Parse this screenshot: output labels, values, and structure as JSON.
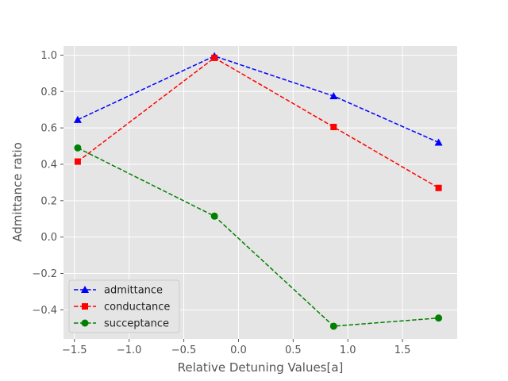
{
  "chart_data": {
    "type": "line",
    "title": "",
    "xlabel": "Relative Detuning Values[a]",
    "ylabel": "Admittance ratio",
    "xlim": [
      -1.6,
      2.0
    ],
    "ylim": [
      -0.56,
      1.05
    ],
    "xticks": [
      -1.5,
      -1.0,
      -0.5,
      0.0,
      0.5,
      1.0,
      1.5
    ],
    "xtick_labels": [
      "−1.5",
      "−1.0",
      "−0.5",
      "0.0",
      "0.5",
      "1.0",
      "1.5"
    ],
    "yticks": [
      -0.4,
      -0.2,
      0.0,
      0.2,
      0.4,
      0.6,
      0.8,
      1.0
    ],
    "ytick_labels": [
      "−0.4",
      "−0.2",
      "0.0",
      "0.2",
      "0.4",
      "0.6",
      "0.8",
      "1.0"
    ],
    "grid": true,
    "legend_position": "lower-left",
    "x": [
      -1.47,
      -0.22,
      0.87,
      1.83
    ],
    "series": [
      {
        "name": "admittance",
        "values": [
          0.645,
          0.995,
          0.775,
          0.52
        ],
        "color": "#0000ff",
        "marker": "triangle"
      },
      {
        "name": "conductance",
        "values": [
          0.415,
          0.985,
          0.605,
          0.27
        ],
        "color": "#ff0000",
        "marker": "square"
      },
      {
        "name": "succeptance",
        "values": [
          0.49,
          0.115,
          -0.49,
          -0.445
        ],
        "color": "#008000",
        "marker": "circle"
      }
    ]
  }
}
